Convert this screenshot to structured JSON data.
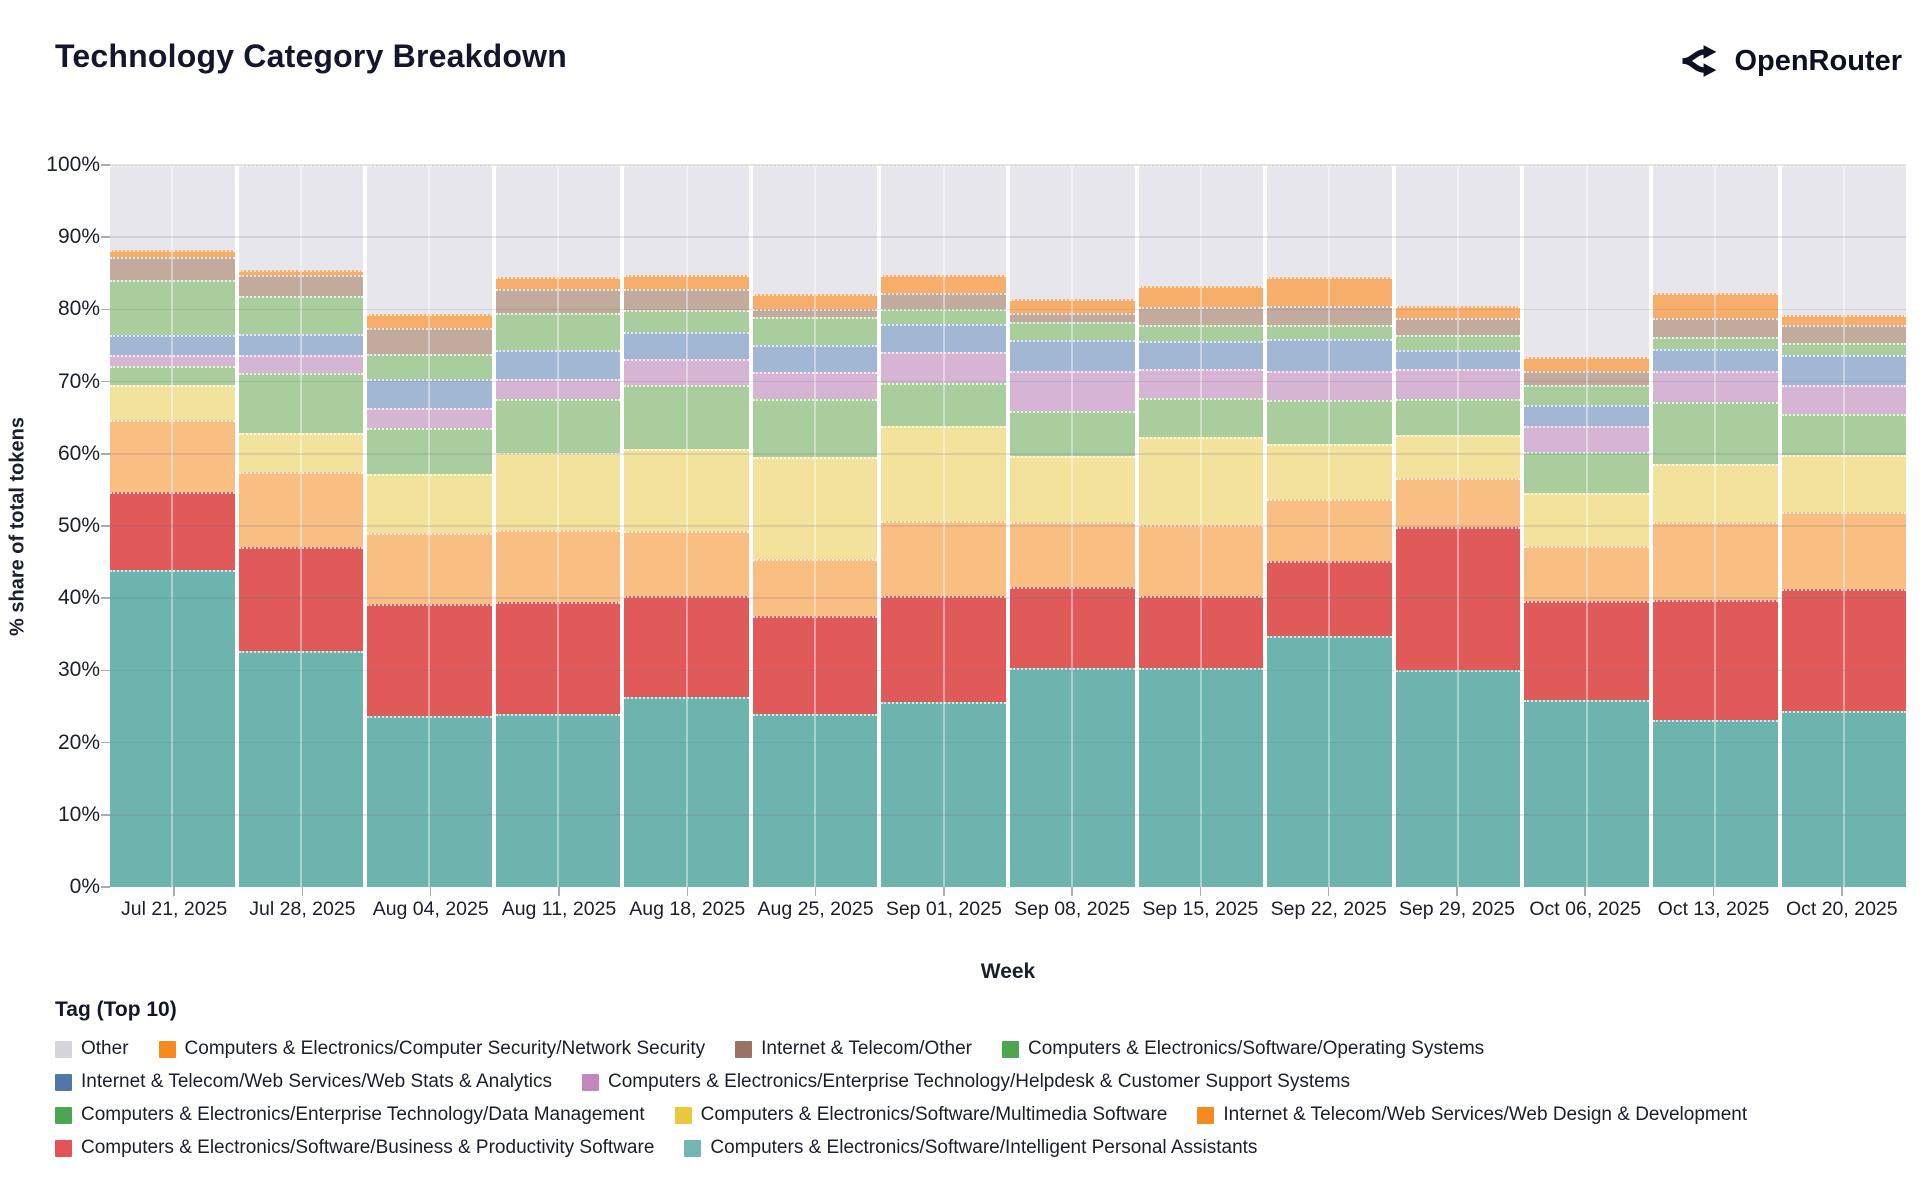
{
  "header": {
    "title": "Technology Category Breakdown",
    "brand": "OpenRouter"
  },
  "axes": {
    "y_label": "% share of total tokens",
    "x_label": "Week",
    "y_ticks": [
      "0%",
      "10%",
      "20%",
      "30%",
      "40%",
      "50%",
      "60%",
      "70%",
      "80%",
      "90%",
      "100%"
    ]
  },
  "legend": {
    "title": "Tag (Top 10)",
    "rows": [
      [
        "Other",
        "Computers & Electronics/Computer Security/Network Security",
        "Internet & Telecom/Other",
        "Computers & Electronics/Software/Operating Systems"
      ],
      [
        "Internet & Telecom/Web Services/Web Stats & Analytics",
        "Computers & Electronics/Enterprise Technology/Helpdesk & Customer Support Systems"
      ],
      [
        "Computers & Electronics/Enterprise Technology/Data Management",
        "Computers & Electronics/Software/Multimedia Software",
        "Internet & Telecom/Web Services/Web Design & Development"
      ],
      [
        "Computers & Electronics/Software/Business & Productivity Software",
        "Computers & Electronics/Software/Intelligent Personal Assistants"
      ]
    ]
  },
  "chart_data": {
    "type": "bar",
    "stacked": true,
    "title": "Technology Category Breakdown",
    "xlabel": "Week",
    "ylabel": "% share of total tokens",
    "ylim": [
      0,
      100
    ],
    "grid": true,
    "legend_position": "bottom",
    "plot_bg": "#ebebf1",
    "categories": [
      "Jul 21, 2025",
      "Jul 28, 2025",
      "Aug 04, 2025",
      "Aug 11, 2025",
      "Aug 18, 2025",
      "Aug 25, 2025",
      "Sep 01, 2025",
      "Sep 08, 2025",
      "Sep 15, 2025",
      "Sep 22, 2025",
      "Sep 29, 2025",
      "Oct 06, 2025",
      "Oct 13, 2025",
      "Oct 20, 2025"
    ],
    "series": [
      {
        "name": "Computers & Electronics/Software/Intelligent Personal Assistants",
        "legend_color": "#74b6b1",
        "fill": "#6db4af",
        "values": [
          43.9,
          32.7,
          23.7,
          24.0,
          26.3,
          23.9,
          25.6,
          30.4,
          30.3,
          34.8,
          30.0,
          25.9,
          23.1,
          24.4
        ]
      },
      {
        "name": "Computers & Electronics/Software/Business & Productivity Software",
        "legend_color": "#e15356",
        "fill": "#e15a5a",
        "values": [
          10.8,
          14.4,
          15.5,
          15.5,
          14.0,
          13.6,
          14.7,
          11.2,
          10.0,
          10.4,
          19.8,
          13.7,
          16.6,
          16.9
        ]
      },
      {
        "name": "Internet & Telecom/Web Services/Web Design & Development",
        "legend_color": "#f68a1e",
        "fill": "#f9be82",
        "values": [
          10.0,
          10.4,
          9.9,
          9.9,
          9.0,
          7.9,
          10.4,
          8.9,
          9.9,
          8.5,
          6.9,
          7.6,
          10.8,
          10.6
        ]
      },
      {
        "name": "Computers & Electronics/Software/Multimedia Software",
        "legend_color": "#eac73d",
        "fill": "#f3e29b",
        "values": [
          4.9,
          5.4,
          8.1,
          10.7,
          11.4,
          14.2,
          13.1,
          9.2,
          12.1,
          7.7,
          5.9,
          7.4,
          8.1,
          8.0
        ]
      },
      {
        "name": "Computers & Electronics/Enterprise Technology/Data Management",
        "legend_color": "#4ea650",
        "fill": "#a9cd9d",
        "values": [
          2.6,
          8.3,
          6.4,
          7.5,
          8.9,
          8.0,
          6.0,
          6.2,
          5.4,
          6.0,
          5.0,
          5.6,
          8.6,
          5.6
        ]
      },
      {
        "name": "Computers & Electronics/Enterprise Technology/Helpdesk & Customer Support Systems",
        "legend_color": "#c287bc",
        "fill": "#d6b5d4",
        "chart_pattern": "dots",
        "values": [
          1.5,
          2.5,
          2.7,
          2.8,
          3.6,
          3.7,
          4.3,
          5.6,
          4.0,
          4.1,
          4.2,
          3.6,
          4.3,
          4.1
        ]
      },
      {
        "name": "Internet & Telecom/Web Services/Web Stats & Analytics",
        "legend_color": "#4e79a7",
        "fill": "#a2b7d4",
        "values": [
          2.8,
          2.9,
          4.0,
          4.0,
          3.7,
          3.8,
          3.9,
          4.3,
          3.9,
          4.4,
          2.6,
          2.9,
          3.0,
          4.1
        ]
      },
      {
        "name": "Computers & Electronics/Software/Operating Systems",
        "legend_color": "#4ea650",
        "fill": "#a9cd9d",
        "values": [
          7.6,
          5.3,
          3.6,
          5.1,
          3.0,
          3.9,
          2.1,
          2.4,
          2.2,
          2.0,
          2.1,
          2.9,
          1.7,
          1.7
        ]
      },
      {
        "name": "Internet & Telecom/Other",
        "legend_color": "#9b7266",
        "legend_pattern": "texture",
        "fill": "#c2aa9d",
        "values": [
          3.1,
          2.9,
          3.6,
          3.4,
          3.0,
          1.1,
          2.2,
          1.3,
          2.5,
          2.6,
          2.3,
          1.9,
          2.6,
          2.4
        ]
      },
      {
        "name": "Computers & Electronics/Computer Security/Network Security",
        "legend_color": "#f68a1e",
        "fill": "#f8ae6b",
        "values": [
          1.1,
          0.6,
          1.9,
          1.6,
          1.9,
          2.1,
          2.5,
          1.9,
          3.0,
          4.0,
          1.7,
          1.9,
          3.5,
          1.5
        ]
      },
      {
        "name": "Other",
        "legend_color": "#d5d5dc",
        "fill": "#e7e6ed",
        "values": [
          11.7,
          14.6,
          20.6,
          15.5,
          15.2,
          17.8,
          15.2,
          18.6,
          16.7,
          15.5,
          19.5,
          26.6,
          17.7,
          20.7
        ]
      }
    ]
  }
}
